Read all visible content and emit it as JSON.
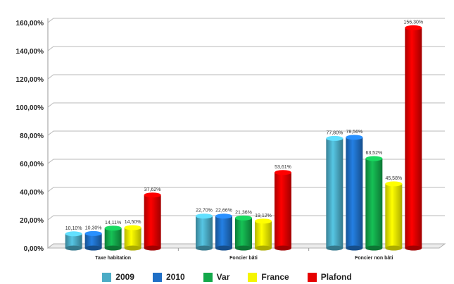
{
  "chart_data": {
    "type": "bar",
    "title": "",
    "categories": [
      "Taxe habitation",
      "Foncier bâti",
      "Foncier non bâti"
    ],
    "series": [
      {
        "name": "2009",
        "color": "#4bacc6",
        "values": [
          10.1,
          22.7,
          77.8
        ],
        "labels": [
          "10,10%",
          "22,70%",
          "77,80%"
        ]
      },
      {
        "name": "2010",
        "color": "#1f6fc6",
        "values": [
          10.3,
          22.66,
          78.56
        ],
        "labels": [
          "10,30%",
          "22,66%",
          "78,56%"
        ]
      },
      {
        "name": "Var",
        "color": "#13a84a",
        "values": [
          14.11,
          21.36,
          63.52
        ],
        "labels": [
          "14,11%",
          "21,36%",
          "63,52%"
        ]
      },
      {
        "name": "France",
        "color": "#f5f500",
        "values": [
          14.5,
          19.12,
          45.58
        ],
        "labels": [
          "14,50%",
          "19,12%",
          "45,58%"
        ]
      },
      {
        "name": "Plafond",
        "color": "#e60000",
        "values": [
          37.62,
          53.61,
          156.3
        ],
        "labels": [
          "37,62%",
          "53,61%",
          "156,30%"
        ]
      }
    ],
    "ylim": [
      0,
      160
    ],
    "yticks": [
      "0,00%",
      "20,00%",
      "40,00%",
      "60,00%",
      "80,00%",
      "100,00%",
      "120,00%",
      "140,00%",
      "160,00%"
    ],
    "grid": true,
    "legend_position": "bottom"
  }
}
